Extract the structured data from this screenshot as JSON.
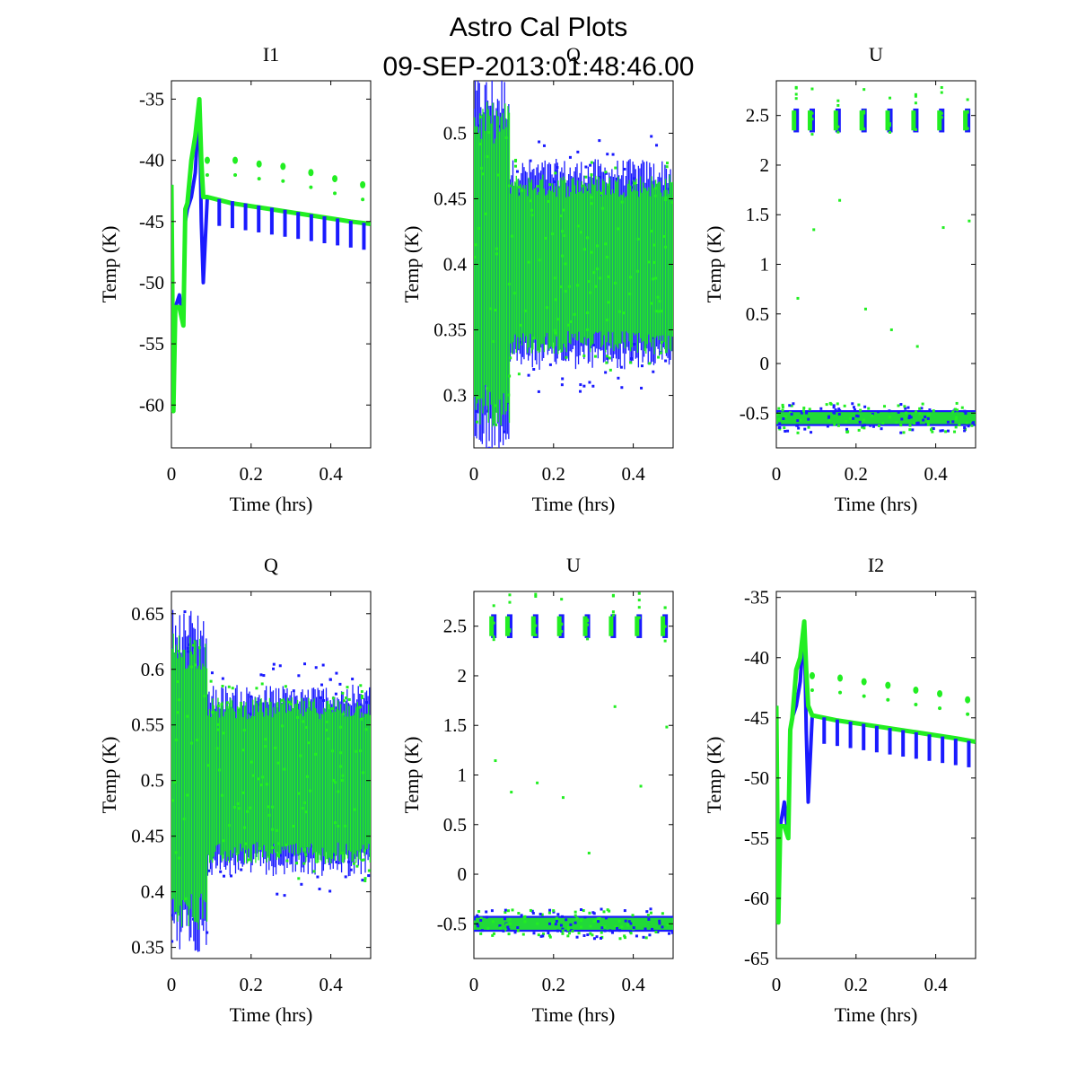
{
  "figure": {
    "title_line1": "Astro Cal Plots",
    "title_line2": "09-SEP-2013:01:48:46.00"
  },
  "colors": {
    "series_blue": "#1a1aff",
    "series_green": "#22ee22"
  },
  "chart_data": [
    {
      "type": "scatter",
      "title": "I1",
      "xlabel": "Time (hrs)",
      "ylabel": "Temp (K)",
      "xlim": [
        0,
        0.5
      ],
      "ylim": [
        -63.5,
        -33.5
      ],
      "xticks": [
        "0",
        "0.2",
        "0.4"
      ],
      "xtick_values": [
        0,
        0.2,
        0.4
      ],
      "yticks": [
        "-35",
        "-40",
        "-45",
        "-50",
        "-55",
        "-60"
      ],
      "ytick_values": [
        -35,
        -40,
        -45,
        -50,
        -55,
        -60
      ],
      "series": [
        {
          "name": "blue",
          "color": "#1a1aff",
          "x": [
            0.0,
            0.005,
            0.01,
            0.02,
            0.03,
            0.035,
            0.04,
            0.05,
            0.06,
            0.07,
            0.075,
            0.08,
            0.09,
            0.15,
            0.25,
            0.35,
            0.45,
            0.5
          ],
          "y": [
            -42,
            -60,
            -52,
            -51,
            -53.5,
            -45,
            -44,
            -43,
            -41,
            -35,
            -45,
            -50,
            -43,
            -43.5,
            -44,
            -44.5,
            -45,
            -45.2
          ]
        },
        {
          "name": "green",
          "color": "#22ee22",
          "x": [
            0.0,
            0.005,
            0.01,
            0.02,
            0.03,
            0.035,
            0.04,
            0.05,
            0.06,
            0.07,
            0.075,
            0.08,
            0.09,
            0.15,
            0.25,
            0.35,
            0.45,
            0.5
          ],
          "y": [
            -42,
            -60.5,
            -52,
            -52,
            -53.5,
            -44,
            -43.5,
            -40,
            -38,
            -35,
            -40,
            -43,
            -43,
            -43.5,
            -44,
            -44.5,
            -45,
            -45.2
          ]
        }
      ],
      "outliers_green": {
        "x": [
          0.09,
          0.16,
          0.22,
          0.28,
          0.35,
          0.41,
          0.48
        ],
        "y": [
          -40,
          -40,
          -40.3,
          -40.5,
          -41,
          -41.5,
          -42
        ]
      }
    },
    {
      "type": "scatter",
      "title": "Q",
      "xlabel": "Time (hrs)",
      "ylabel": "Temp (K)",
      "xlim": [
        0,
        0.5
      ],
      "ylim": [
        0.26,
        0.54
      ],
      "xticks": [
        "0",
        "0.2",
        "0.4"
      ],
      "xtick_values": [
        0,
        0.2,
        0.4
      ],
      "yticks": [
        "0.5",
        "0.45",
        "0.4",
        "0.35",
        "0.3"
      ],
      "ytick_values": [
        0.5,
        0.45,
        0.4,
        0.35,
        0.3
      ],
      "series": [
        {
          "name": "blue",
          "color": "#1a1aff",
          "band": [
            0.33,
            0.47
          ],
          "center": 0.4
        },
        {
          "name": "green",
          "color": "#22ee22",
          "band": [
            0.34,
            0.46
          ],
          "center": 0.4
        }
      ]
    },
    {
      "type": "scatter",
      "title": "U",
      "xlabel": "Time (hrs)",
      "ylabel": "Temp (K)",
      "xlim": [
        0,
        0.5
      ],
      "ylim": [
        -0.85,
        2.85
      ],
      "xticks": [
        "0",
        "0.2",
        "0.4"
      ],
      "xtick_values": [
        0,
        0.2,
        0.4
      ],
      "yticks": [
        "2.5",
        "2",
        "1.5",
        "1",
        "0.5",
        "0",
        "-0.5"
      ],
      "ytick_values": [
        2.5,
        2,
        1.5,
        1,
        0.5,
        0,
        -0.5
      ],
      "series": [
        {
          "name": "blue",
          "color": "#1a1aff",
          "low_level": -0.55,
          "high_level": 2.45
        },
        {
          "name": "green",
          "color": "#22ee22",
          "low_level": -0.55,
          "high_level": 2.45
        }
      ],
      "cluster_times": [
        0.05,
        0.09,
        0.155,
        0.22,
        0.285,
        0.35,
        0.415,
        0.48
      ]
    },
    {
      "type": "scatter",
      "title": "Q",
      "xlabel": "Time (hrs)",
      "ylabel": "Temp (K)",
      "xlim": [
        0,
        0.5
      ],
      "ylim": [
        0.34,
        0.67
      ],
      "xticks": [
        "0",
        "0.2",
        "0.4"
      ],
      "xtick_values": [
        0,
        0.2,
        0.4
      ],
      "yticks": [
        "0.65",
        "0.6",
        "0.55",
        "0.5",
        "0.45",
        "0.4",
        "0.35"
      ],
      "ytick_values": [
        0.65,
        0.6,
        0.55,
        0.5,
        0.45,
        0.4,
        0.35
      ],
      "series": [
        {
          "name": "blue",
          "color": "#1a1aff",
          "band": [
            0.43,
            0.58
          ],
          "center": 0.5
        },
        {
          "name": "green",
          "color": "#22ee22",
          "band": [
            0.44,
            0.57
          ],
          "center": 0.5
        }
      ]
    },
    {
      "type": "scatter",
      "title": "U",
      "xlabel": "Time (hrs)",
      "ylabel": "Temp (K)",
      "xlim": [
        0,
        0.5
      ],
      "ylim": [
        -0.85,
        2.85
      ],
      "xticks": [
        "0",
        "0.2",
        "0.4"
      ],
      "xtick_values": [
        0,
        0.2,
        0.4
      ],
      "yticks": [
        "2.5",
        "2",
        "1.5",
        "1",
        "0.5",
        "0",
        "-0.5"
      ],
      "ytick_values": [
        2.5,
        2,
        1.5,
        1,
        0.5,
        0,
        -0.5
      ],
      "series": [
        {
          "name": "blue",
          "color": "#1a1aff",
          "low_level": -0.5,
          "high_level": 2.5
        },
        {
          "name": "green",
          "color": "#22ee22",
          "low_level": -0.5,
          "high_level": 2.5
        }
      ],
      "cluster_times": [
        0.05,
        0.09,
        0.155,
        0.22,
        0.285,
        0.35,
        0.415,
        0.48
      ]
    },
    {
      "type": "scatter",
      "title": "I2",
      "xlabel": "Time (hrs)",
      "ylabel": "Temp (K)",
      "xlim": [
        0,
        0.5
      ],
      "ylim": [
        -65,
        -34.5
      ],
      "xticks": [
        "0",
        "0.2",
        "0.4"
      ],
      "xtick_values": [
        0,
        0.2,
        0.4
      ],
      "yticks": [
        "-35",
        "-40",
        "-45",
        "-50",
        "-55",
        "-60",
        "-65"
      ],
      "ytick_values": [
        -35,
        -40,
        -45,
        -50,
        -55,
        -60,
        -65
      ],
      "series": [
        {
          "name": "blue",
          "color": "#1a1aff",
          "x": [
            0.0,
            0.005,
            0.01,
            0.02,
            0.03,
            0.035,
            0.04,
            0.05,
            0.06,
            0.07,
            0.075,
            0.08,
            0.09,
            0.15,
            0.25,
            0.35,
            0.45,
            0.5
          ],
          "y": [
            -44,
            -62,
            -54,
            -52,
            -55,
            -46,
            -45,
            -44,
            -42,
            -37,
            -46,
            -52,
            -44.8,
            -45.2,
            -45.7,
            -46.2,
            -46.7,
            -47
          ]
        },
        {
          "name": "green",
          "color": "#22ee22",
          "x": [
            0.0,
            0.005,
            0.01,
            0.02,
            0.03,
            0.035,
            0.04,
            0.05,
            0.06,
            0.07,
            0.075,
            0.08,
            0.09,
            0.15,
            0.25,
            0.35,
            0.45,
            0.5
          ],
          "y": [
            -44,
            -62,
            -54,
            -54,
            -55,
            -46,
            -45,
            -41,
            -40,
            -37,
            -41,
            -44,
            -44.8,
            -45.2,
            -45.7,
            -46.2,
            -46.7,
            -47
          ]
        }
      ],
      "outliers_green": {
        "x": [
          0.09,
          0.16,
          0.22,
          0.28,
          0.35,
          0.41,
          0.48
        ],
        "y": [
          -41.5,
          -41.7,
          -42,
          -42.3,
          -42.7,
          -43,
          -43.5
        ]
      }
    }
  ]
}
